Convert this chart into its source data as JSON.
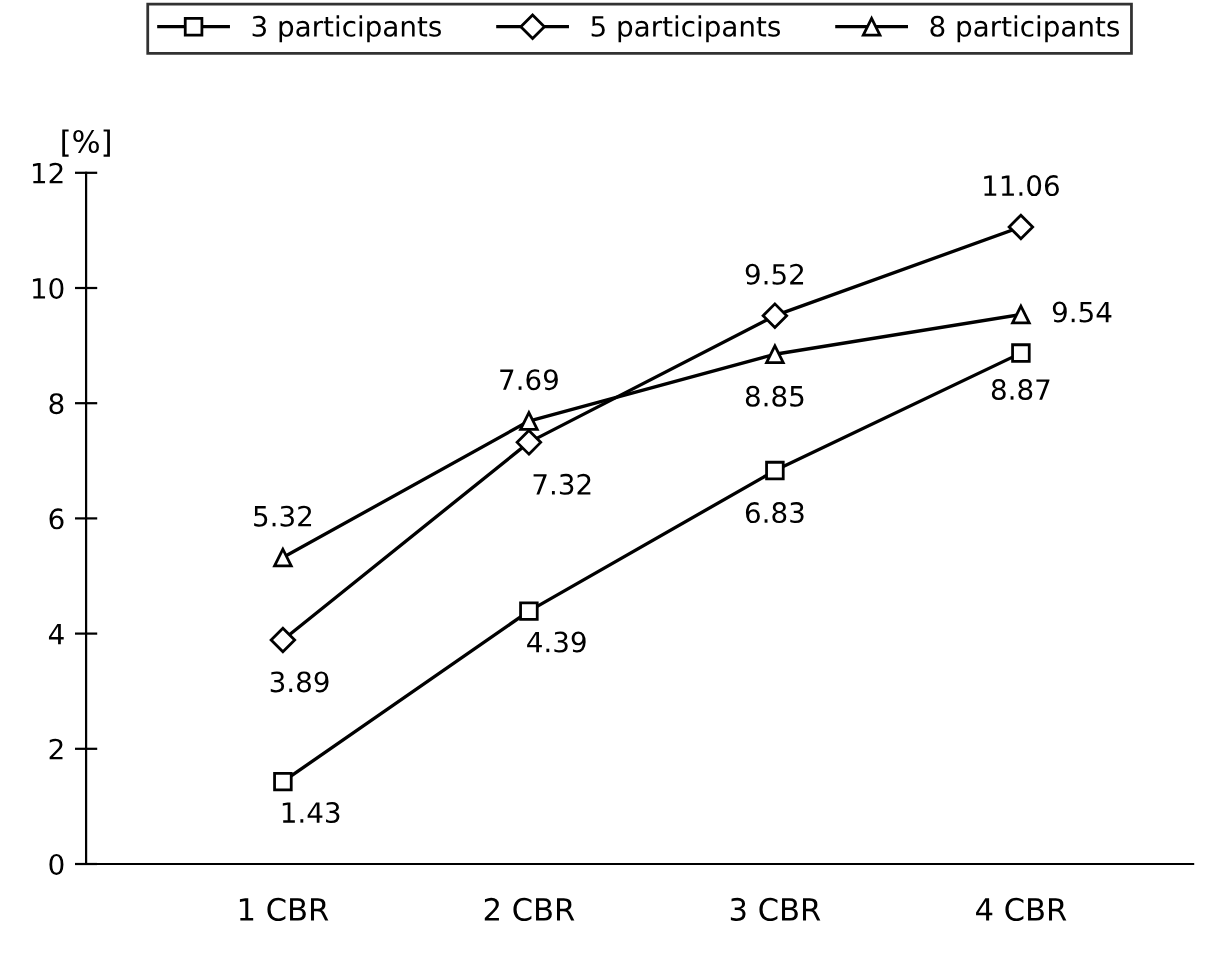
{
  "chart_data": {
    "type": "line",
    "ylabel": "[%]",
    "categories": [
      "1 CBR",
      "2 CBR",
      "3 CBR",
      "4 CBR"
    ],
    "series": [
      {
        "name": "3 participants",
        "color": "#000000",
        "marker": "square",
        "values": [
          1.43,
          4.39,
          6.83,
          8.87
        ]
      },
      {
        "name": "5 participants",
        "color": "#000000",
        "marker": "diamond",
        "values": [
          3.89,
          7.32,
          9.52,
          11.06
        ]
      },
      {
        "name": "8 participants",
        "color": "#000000",
        "marker": "triangle",
        "values": [
          5.32,
          7.69,
          8.85,
          9.54
        ]
      }
    ],
    "ylim": [
      0,
      12
    ],
    "yticks": [
      0,
      2,
      4,
      6,
      8,
      10,
      12
    ],
    "data_labels": true,
    "legend": "top",
    "grid": false,
    "line_style": "solid"
  }
}
